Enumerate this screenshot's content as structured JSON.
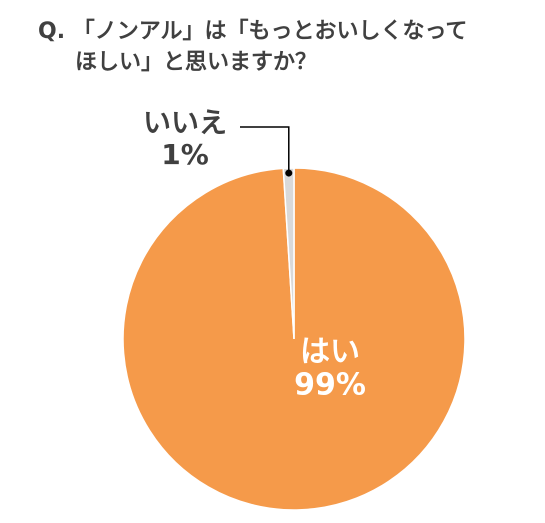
{
  "chart_data": {
    "type": "pie",
    "title": [
      "Q. 「ノンアル」は「もっとおいしくなって",
      "ほしい」と思いますか？"
    ],
    "categories": [
      "はい",
      "いいえ"
    ],
    "values": [
      99,
      1
    ],
    "value_labels": [
      "99%",
      "1%"
    ],
    "colors": [
      "#f59a4a",
      "#d9d9d9"
    ]
  }
}
